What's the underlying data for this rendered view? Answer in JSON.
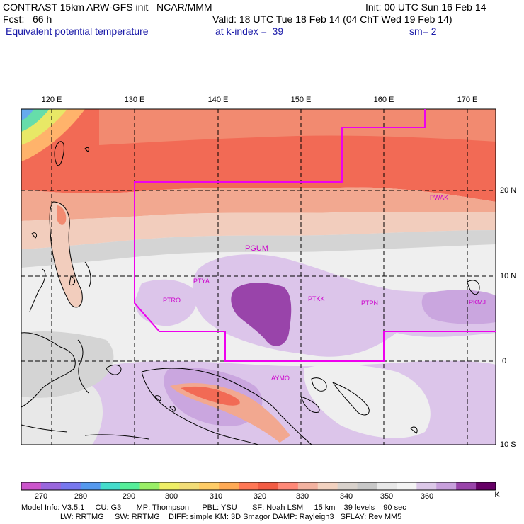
{
  "header": {
    "model_line": "CONTRAST 15km ARW-GFS init   NCAR/MMM",
    "init": "Init: 00 UTC Sun 16 Feb 14",
    "fcst": "Fcst:   66 h",
    "valid": "Valid: 18 UTC Tue 18 Feb 14 (04 ChT Wed 19 Feb 14)",
    "field": "Equivalent potential temperature",
    "level": "at k-index =  39",
    "smoothing": "sm= 2"
  },
  "map": {
    "lon_labels": [
      "120 E",
      "130 E",
      "140 E",
      "150 E",
      "160 E",
      "170 E"
    ],
    "lat_labels": [
      "20 N",
      "10 N",
      "0",
      "10 S"
    ],
    "stations": [
      "PWAK",
      "PGUM",
      "PTYA",
      "PTRO",
      "PTKK",
      "PTPN",
      "PKMJ",
      "AYMO"
    ]
  },
  "colorbar": {
    "unit": "K",
    "labels": [
      "270",
      "280",
      "290",
      "300",
      "310",
      "320",
      "330",
      "340",
      "350",
      "360"
    ],
    "colors": [
      "#cc55cc",
      "#9966dd",
      "#7777ee",
      "#5599ee",
      "#44ddcc",
      "#55ee99",
      "#99ee66",
      "#eeee66",
      "#f2dd77",
      "#ffcc66",
      "#ffaa55",
      "#ff7755",
      "#f25c44",
      "#ff8877",
      "#f2b2a0",
      "#f2d2c0",
      "#d9d2cc",
      "#c8c8c8",
      "#e8e8e8",
      "#f4f4f4",
      "#dcc8e8",
      "#c8a0dc",
      "#9944aa",
      "#660066"
    ]
  },
  "footer": {
    "line1": "Model Info: V3.5.1     CU: G3       MP: Thompson      PBL: YSU       SF: Noah LSM     15 km    39 levels    90 sec",
    "line2": "                  LW: RRTMG     SW: RRTMG    DIFF: simple KM: 3D Smagor DAMP: Rayleigh3   SFLAY: Rev MM5"
  }
}
